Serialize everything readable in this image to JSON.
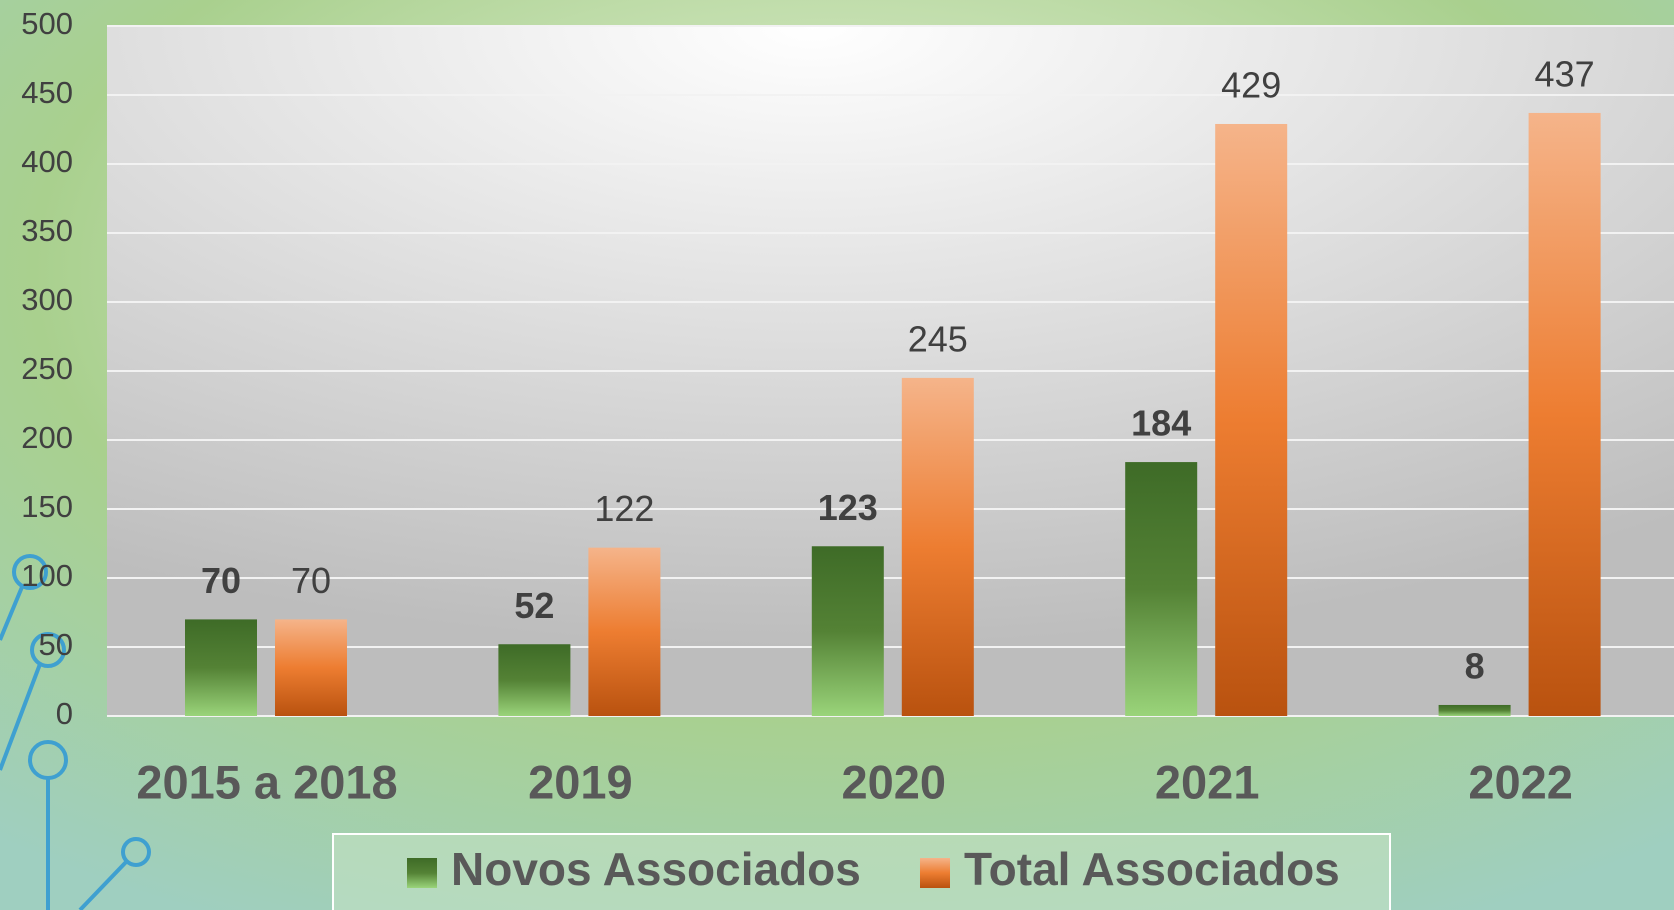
{
  "chart_data": {
    "type": "bar",
    "categories": [
      "2015 a 2018",
      "2019",
      "2020",
      "2021",
      "2022"
    ],
    "series": [
      {
        "name": "Novos Associados",
        "color": "#548235",
        "values": [
          70,
          52,
          123,
          184,
          8
        ]
      },
      {
        "name": "Total Associados",
        "color": "#ed7d31",
        "values": [
          70,
          122,
          245,
          429,
          437
        ]
      }
    ],
    "ylim": [
      0,
      500
    ],
    "yticks": [
      0,
      50,
      100,
      150,
      200,
      250,
      300,
      350,
      400,
      450,
      500
    ],
    "grid": true,
    "legend": "bottom"
  }
}
